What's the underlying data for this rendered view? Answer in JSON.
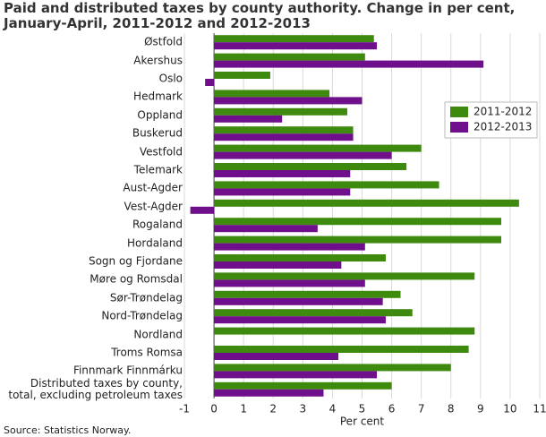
{
  "chart_data": {
    "type": "hbar",
    "title": "Paid and distributed taxes by county authority. Change in per cent,\nJanuary-April, 2011-2012 and 2012-2013",
    "source": "Source: Statistics Norway.",
    "xlabel": "Per cent",
    "categories": [
      "Østfold",
      "Akershus",
      "Oslo",
      "Hedmark",
      "Oppland",
      "Buskerud",
      "Vestfold",
      "Telemark",
      "Aust-Agder",
      "Vest-Agder",
      "Rogaland",
      "Hordaland",
      "Sogn og Fjordane",
      "Møre og Romsdal",
      "Sør-Trøndelag",
      "Nord-Trøndelag",
      "Nordland",
      "Troms Romsa",
      "Finnmark Finnmárku",
      "Distributed taxes by county,\ntotal, excluding petroleum taxes"
    ],
    "series": [
      {
        "name": "2011-2012",
        "color": "#3d8a0f",
        "values": [
          5.4,
          5.1,
          1.9,
          3.9,
          4.5,
          4.7,
          7.0,
          6.5,
          7.6,
          10.3,
          9.7,
          9.7,
          5.8,
          8.8,
          6.3,
          6.7,
          8.8,
          8.6,
          8.0,
          6.0
        ]
      },
      {
        "name": "2012-2013",
        "color": "#6f0f8b",
        "values": [
          5.5,
          9.1,
          -0.3,
          5.0,
          2.3,
          4.7,
          6.0,
          4.6,
          4.6,
          -0.8,
          3.5,
          5.1,
          4.3,
          5.1,
          5.7,
          5.8,
          null,
          4.2,
          5.5,
          3.7
        ]
      }
    ],
    "xlim": [
      -1,
      11
    ],
    "xticks": [
      -1,
      0,
      1,
      2,
      3,
      4,
      5,
      6,
      7,
      8,
      9,
      10,
      11
    ],
    "grid": true,
    "legend": "upper right"
  }
}
